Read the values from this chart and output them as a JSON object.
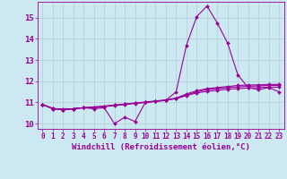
{
  "xlabel": "Windchill (Refroidissement éolien,°C)",
  "background_color": "#cce8f0",
  "line_color": "#990099",
  "xlim": [
    -0.5,
    23.5
  ],
  "ylim": [
    9.75,
    15.75
  ],
  "x": [
    0,
    1,
    2,
    3,
    4,
    5,
    6,
    7,
    8,
    9,
    10,
    11,
    12,
    13,
    14,
    15,
    16,
    17,
    18,
    19,
    20,
    21,
    22,
    23
  ],
  "series": [
    [
      10.9,
      10.7,
      10.7,
      10.7,
      10.75,
      10.7,
      10.75,
      10.0,
      10.3,
      10.1,
      11.0,
      11.05,
      11.1,
      11.5,
      13.7,
      15.05,
      15.55,
      14.75,
      13.8,
      12.3,
      11.7,
      11.6,
      11.7,
      11.5
    ],
    [
      10.9,
      10.7,
      10.65,
      10.7,
      10.75,
      10.75,
      10.8,
      10.85,
      10.9,
      10.95,
      11.0,
      11.05,
      11.1,
      11.2,
      11.4,
      11.55,
      11.65,
      11.7,
      11.75,
      11.8,
      11.82,
      11.83,
      11.85,
      11.85
    ],
    [
      10.9,
      10.72,
      10.65,
      10.7,
      10.75,
      10.78,
      10.82,
      10.87,
      10.92,
      10.97,
      11.02,
      11.07,
      11.12,
      11.2,
      11.35,
      11.5,
      11.6,
      11.65,
      11.7,
      11.73,
      11.76,
      11.78,
      11.8,
      11.8
    ],
    [
      10.9,
      10.72,
      10.65,
      10.7,
      10.75,
      10.78,
      10.82,
      10.87,
      10.92,
      10.97,
      11.0,
      11.05,
      11.1,
      11.18,
      11.32,
      11.45,
      11.52,
      11.57,
      11.62,
      11.65,
      11.68,
      11.7,
      11.72,
      11.72
    ]
  ],
  "xtick_labels": [
    "0",
    "1",
    "2",
    "3",
    "4",
    "5",
    "6",
    "7",
    "8",
    "9",
    "10",
    "11",
    "12",
    "13",
    "14",
    "15",
    "16",
    "17",
    "18",
    "19",
    "20",
    "21",
    "22",
    "23"
  ],
  "ytick_values": [
    10,
    11,
    12,
    13,
    14,
    15
  ],
  "grid_color": "#b0ccd4",
  "marker": "D",
  "markersize": 2,
  "linewidth": 0.8,
  "xlabel_fontsize": 6.5,
  "tick_fontsize": 5.5,
  "ytick_fontsize": 6.5
}
